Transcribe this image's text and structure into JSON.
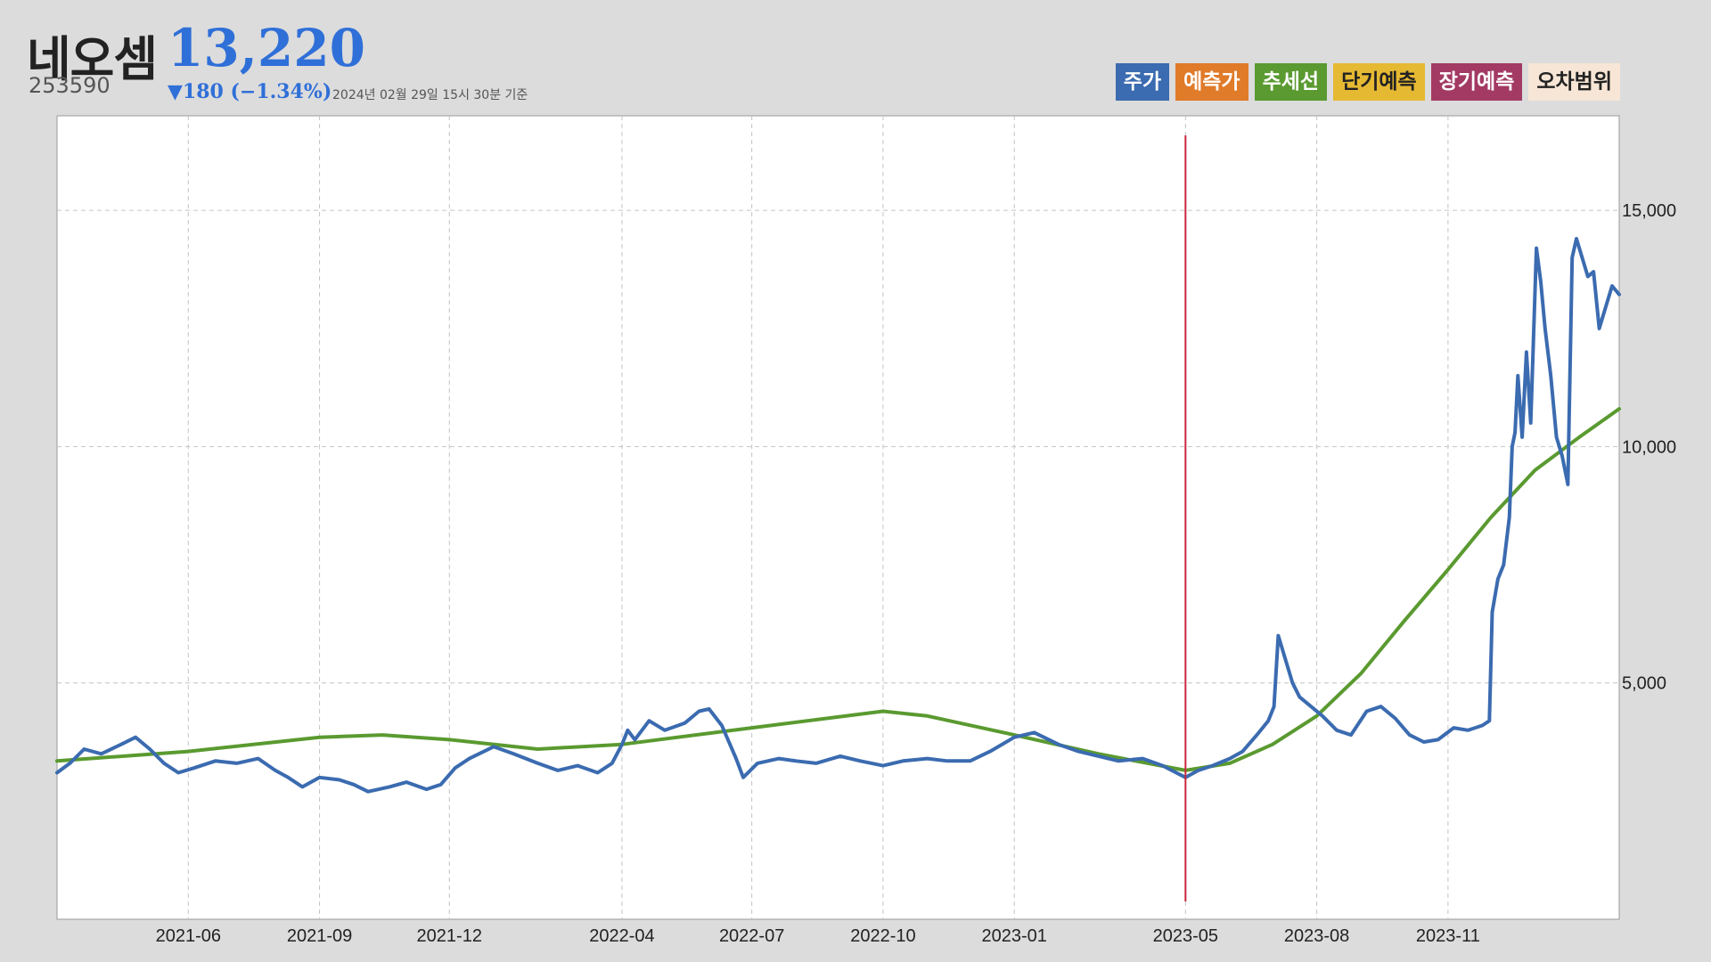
{
  "header": {
    "name": "네오셈",
    "price": "13,220",
    "code": "253590",
    "change": "▼180 (−1.34%)",
    "timestamp": "2024년 02월 29일 15시 30분 기준"
  },
  "legend": [
    {
      "label": "주가",
      "color": "#3b6bb0"
    },
    {
      "label": "예측가",
      "color": "#e07b2a"
    },
    {
      "label": "추세선",
      "color": "#5a9a30"
    },
    {
      "label": "단기예측",
      "color": "#e6b933"
    },
    {
      "label": "장기예측",
      "color": "#a33a64"
    },
    {
      "label": "오차범위",
      "color": "#f7e6d6"
    }
  ],
  "chart_data": {
    "type": "line",
    "x_range": [
      "2021-03-01",
      "2024-02-29"
    ],
    "ylim": [
      0,
      17000
    ],
    "y_ticks": [
      5000,
      10000,
      15000
    ],
    "y_tick_labels": [
      "5,000",
      "10,000",
      "15,000"
    ],
    "x_ticks": [
      "2021-06-01",
      "2021-09-01",
      "2021-12-01",
      "2022-04-01",
      "2022-07-01",
      "2022-10-01",
      "2023-01-01",
      "2023-05-01",
      "2023-08-01",
      "2023-11-01"
    ],
    "x_tick_labels": [
      "2021-06",
      "2021-09",
      "2021-12",
      "2022-04",
      "2022-07",
      "2022-10",
      "2023-01",
      "2023-05",
      "2023-08",
      "2023-11"
    ],
    "grid": true,
    "y_axis_position": "right",
    "marker_line": {
      "date": "2023-05-01",
      "color": "#c8283c"
    },
    "series": [
      {
        "name": "주가",
        "color": "#3b6bb0",
        "points": [
          [
            "2021-03-01",
            3100
          ],
          [
            "2021-03-10",
            3300
          ],
          [
            "2021-03-20",
            3600
          ],
          [
            "2021-04-01",
            3500
          ],
          [
            "2021-04-15",
            3700
          ],
          [
            "2021-04-25",
            3850
          ],
          [
            "2021-05-05",
            3600
          ],
          [
            "2021-05-15",
            3300
          ],
          [
            "2021-05-25",
            3100
          ],
          [
            "2021-06-05",
            3200
          ],
          [
            "2021-06-20",
            3350
          ],
          [
            "2021-07-05",
            3300
          ],
          [
            "2021-07-20",
            3400
          ],
          [
            "2021-08-01",
            3150
          ],
          [
            "2021-08-10",
            3000
          ],
          [
            "2021-08-20",
            2800
          ],
          [
            "2021-09-01",
            3000
          ],
          [
            "2021-09-15",
            2950
          ],
          [
            "2021-09-25",
            2850
          ],
          [
            "2021-10-05",
            2700
          ],
          [
            "2021-10-20",
            2800
          ],
          [
            "2021-11-01",
            2900
          ],
          [
            "2021-11-15",
            2750
          ],
          [
            "2021-11-25",
            2850
          ],
          [
            "2021-12-05",
            3200
          ],
          [
            "2021-12-15",
            3400
          ],
          [
            "2022-01-01",
            3650
          ],
          [
            "2022-01-15",
            3500
          ],
          [
            "2022-02-01",
            3300
          ],
          [
            "2022-02-15",
            3150
          ],
          [
            "2022-03-01",
            3250
          ],
          [
            "2022-03-15",
            3100
          ],
          [
            "2022-03-25",
            3300
          ],
          [
            "2022-04-01",
            3700
          ],
          [
            "2022-04-05",
            4000
          ],
          [
            "2022-04-10",
            3800
          ],
          [
            "2022-04-20",
            4200
          ],
          [
            "2022-05-01",
            4000
          ],
          [
            "2022-05-15",
            4150
          ],
          [
            "2022-05-25",
            4400
          ],
          [
            "2022-06-01",
            4450
          ],
          [
            "2022-06-10",
            4100
          ],
          [
            "2022-06-20",
            3400
          ],
          [
            "2022-06-25",
            3000
          ],
          [
            "2022-07-05",
            3300
          ],
          [
            "2022-07-20",
            3400
          ],
          [
            "2022-08-01",
            3350
          ],
          [
            "2022-08-15",
            3300
          ],
          [
            "2022-09-01",
            3450
          ],
          [
            "2022-09-15",
            3350
          ],
          [
            "2022-10-01",
            3250
          ],
          [
            "2022-10-15",
            3350
          ],
          [
            "2022-11-01",
            3400
          ],
          [
            "2022-11-15",
            3350
          ],
          [
            "2022-12-01",
            3350
          ],
          [
            "2022-12-15",
            3550
          ],
          [
            "2023-01-01",
            3850
          ],
          [
            "2023-01-15",
            3950
          ],
          [
            "2023-02-01",
            3700
          ],
          [
            "2023-02-15",
            3550
          ],
          [
            "2023-03-01",
            3450
          ],
          [
            "2023-03-15",
            3350
          ],
          [
            "2023-04-01",
            3400
          ],
          [
            "2023-04-15",
            3250
          ],
          [
            "2023-05-01",
            3000
          ],
          [
            "2023-05-10",
            3150
          ],
          [
            "2023-05-20",
            3250
          ],
          [
            "2023-06-01",
            3400
          ],
          [
            "2023-06-10",
            3550
          ],
          [
            "2023-06-20",
            3900
          ],
          [
            "2023-06-28",
            4200
          ],
          [
            "2023-07-02",
            4500
          ],
          [
            "2023-07-05",
            6000
          ],
          [
            "2023-07-10",
            5500
          ],
          [
            "2023-07-15",
            5000
          ],
          [
            "2023-07-20",
            4700
          ],
          [
            "2023-07-28",
            4500
          ],
          [
            "2023-08-05",
            4300
          ],
          [
            "2023-08-15",
            4000
          ],
          [
            "2023-08-25",
            3900
          ],
          [
            "2023-09-05",
            4400
          ],
          [
            "2023-09-15",
            4500
          ],
          [
            "2023-09-25",
            4250
          ],
          [
            "2023-10-05",
            3900
          ],
          [
            "2023-10-15",
            3750
          ],
          [
            "2023-10-25",
            3800
          ],
          [
            "2023-11-05",
            4050
          ],
          [
            "2023-11-15",
            4000
          ],
          [
            "2023-11-25",
            4100
          ],
          [
            "2023-11-30",
            4200
          ],
          [
            "2023-12-02",
            6500
          ],
          [
            "2023-12-06",
            7200
          ],
          [
            "2023-12-10",
            7500
          ],
          [
            "2023-12-14",
            8500
          ],
          [
            "2023-12-16",
            10000
          ],
          [
            "2023-12-18",
            10300
          ],
          [
            "2023-12-20",
            11500
          ],
          [
            "2023-12-23",
            10200
          ],
          [
            "2023-12-26",
            12000
          ],
          [
            "2023-12-29",
            10500
          ],
          [
            "2024-01-02",
            14200
          ],
          [
            "2024-01-05",
            13500
          ],
          [
            "2024-01-08",
            12500
          ],
          [
            "2024-01-12",
            11500
          ],
          [
            "2024-01-16",
            10200
          ],
          [
            "2024-01-20",
            9800
          ],
          [
            "2024-01-24",
            9200
          ],
          [
            "2024-01-27",
            14000
          ],
          [
            "2024-01-30",
            14400
          ],
          [
            "2024-02-03",
            14000
          ],
          [
            "2024-02-07",
            13600
          ],
          [
            "2024-02-11",
            13700
          ],
          [
            "2024-02-15",
            12500
          ],
          [
            "2024-02-20",
            13000
          ],
          [
            "2024-02-24",
            13400
          ],
          [
            "2024-02-29",
            13220
          ]
        ]
      },
      {
        "name": "추세선",
        "color": "#5a9a30",
        "points": [
          [
            "2021-03-01",
            3350
          ],
          [
            "2021-06-01",
            3550
          ],
          [
            "2021-09-01",
            3850
          ],
          [
            "2021-10-15",
            3900
          ],
          [
            "2021-12-01",
            3800
          ],
          [
            "2022-02-01",
            3600
          ],
          [
            "2022-04-01",
            3700
          ],
          [
            "2022-07-01",
            4050
          ],
          [
            "2022-10-01",
            4400
          ],
          [
            "2022-11-01",
            4300
          ],
          [
            "2023-01-01",
            3900
          ],
          [
            "2023-03-01",
            3500
          ],
          [
            "2023-05-01",
            3150
          ],
          [
            "2023-06-01",
            3300
          ],
          [
            "2023-07-01",
            3700
          ],
          [
            "2023-08-01",
            4300
          ],
          [
            "2023-09-01",
            5200
          ],
          [
            "2023-10-01",
            6300
          ],
          [
            "2023-11-01",
            7400
          ],
          [
            "2023-12-01",
            8500
          ],
          [
            "2024-01-01",
            9500
          ],
          [
            "2024-02-01",
            10200
          ],
          [
            "2024-02-29",
            10800
          ]
        ]
      }
    ]
  }
}
